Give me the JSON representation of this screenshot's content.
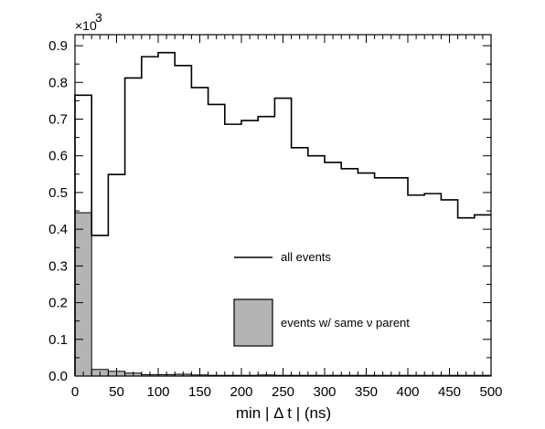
{
  "chart_data": {
    "type": "histogram",
    "title": "",
    "xlabel": "min | Δ t | (ns)",
    "ylabel": "",
    "xlim": [
      0,
      500
    ],
    "ylim": [
      0,
      0.93
    ],
    "y_multiplier": "×10",
    "y_multiplier_exp": "3",
    "x_ticks": [
      0,
      50,
      100,
      150,
      200,
      250,
      300,
      350,
      400,
      450,
      500
    ],
    "x_tick_labels": [
      "0",
      "50",
      "100",
      "150",
      "200",
      "250",
      "300",
      "350",
      "400",
      "450",
      "500"
    ],
    "y_ticks": [
      0,
      0.1,
      0.2,
      0.3,
      0.4,
      0.5,
      0.6,
      0.7,
      0.8,
      0.9
    ],
    "y_tick_labels": [
      "0.0",
      "0.1",
      "0.2",
      "0.3",
      "0.4",
      "0.5",
      "0.6",
      "0.7",
      "0.8",
      "0.9"
    ],
    "bin_width": 20,
    "bin_edges_start": 0,
    "series": [
      {
        "name": "all events",
        "style": "step",
        "color": "#000000",
        "values": [
          0.765,
          0.383,
          0.549,
          0.812,
          0.87,
          0.881,
          0.846,
          0.786,
          0.74,
          0.686,
          0.696,
          0.707,
          0.757,
          0.622,
          0.6,
          0.582,
          0.565,
          0.553,
          0.54,
          0.54,
          0.493,
          0.497,
          0.48,
          0.431,
          0.439
        ]
      },
      {
        "name": "events w/ same ν parent",
        "style": "filled",
        "color": "#b4b4b4",
        "values": [
          0.445,
          0.018,
          0.013,
          0.008,
          0.004,
          0.004,
          0.005,
          0.003,
          0.002,
          0.002,
          0.002,
          0.003,
          0.002,
          0.002,
          0.002,
          0.002,
          0.002,
          0.002,
          0.002,
          0.002,
          0.002,
          0.002,
          0.002,
          0.002,
          0.002
        ]
      }
    ],
    "legend": [
      {
        "label": "all events",
        "kind": "line"
      },
      {
        "label": "events w/ same ν parent",
        "kind": "box"
      }
    ]
  }
}
